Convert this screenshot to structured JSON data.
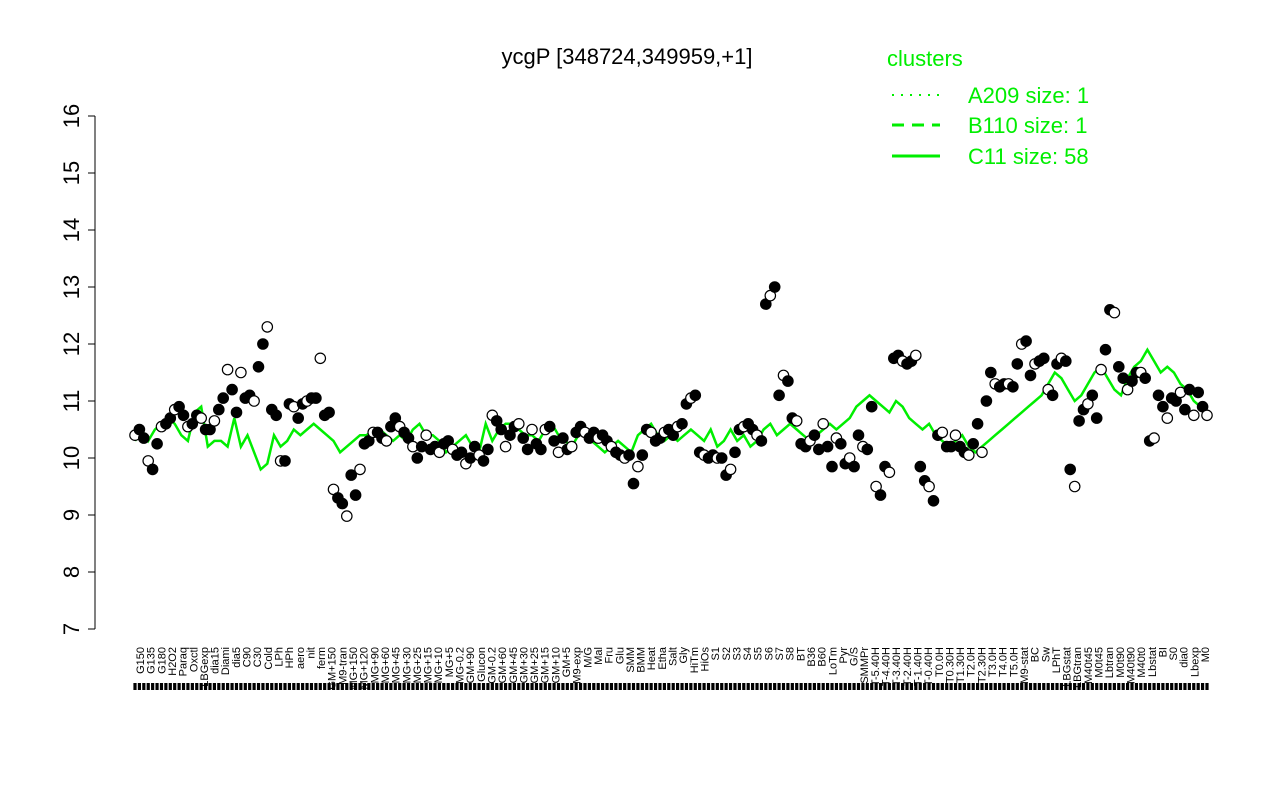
{
  "chart_data": {
    "type": "line",
    "title": "ycgP [348724,349959,+1]",
    "xlabel": "",
    "ylabel": "",
    "ylim": [
      7,
      16
    ],
    "yticks": [
      7,
      8,
      9,
      10,
      11,
      12,
      13,
      14,
      15,
      16
    ],
    "grid": false,
    "legend": {
      "title": "clusters",
      "placement": "top-right",
      "entries": [
        {
          "label": "A209 size: 1",
          "style": "dotted"
        },
        {
          "label": "B110 size: 1",
          "style": "dashed"
        },
        {
          "label": "C11 size: 58",
          "style": "solid"
        }
      ]
    },
    "x_tick_labels": [
      "G150",
      "G135",
      "G180",
      "H2O2",
      "Paraq",
      "Oxctl",
      "LBGexp",
      "dia15",
      "Diami",
      "dia5",
      "C90",
      "C30",
      "Cold",
      "LPh",
      "HPh",
      "aero",
      "nit",
      "ferm",
      "GM+150",
      "M9-tran",
      "MG+150",
      "MG+120",
      "MG+90",
      "MG+60",
      "MG+45",
      "MG+30",
      "MG+25",
      "MG+15",
      "MG+10",
      "MG+5",
      "MG-0.2",
      "GM+90",
      "Glucon",
      "GM-0.2",
      "GM+60",
      "GM+45",
      "GM+30",
      "GM+25",
      "GM+15",
      "GM+10",
      "GM+5",
      "M9-exp",
      "M/G",
      "Mal",
      "Fru",
      "Glu",
      "SMM",
      "BMM",
      "Heat",
      "Etha",
      "Salt",
      "Gly",
      "HiTm",
      "HiOs",
      "S1",
      "S2",
      "S3",
      "S4",
      "S5",
      "S6",
      "S7",
      "S8",
      "BT",
      "B36",
      "B60",
      "LoTm",
      "Pyr",
      "G/S",
      "SMMPr",
      "T-5.40H",
      "T-4.40H",
      "T-3.40H",
      "T-2.40H",
      "T-1.40H",
      "T-0.40H",
      "T0.0H",
      "T0.30H",
      "T1.30H",
      "T2.0H",
      "T2.30H",
      "T3.0H",
      "T4.0H",
      "T5.0H",
      "M9-stat",
      "BC",
      "Sw",
      "LPhT",
      "LBGstat",
      "LBGtran",
      "M40t45",
      "M0t45",
      "Lbtran",
      "M0t90",
      "M40t90",
      "M40t0",
      "Lbstat",
      "BI",
      "S0",
      "dia0",
      "Lbexp",
      "M0"
    ],
    "series": [
      {
        "name": "",
        "color": "#00ee00",
        "style": "solid",
        "values": [
          10.3,
          10.5,
          10.3,
          10.5,
          10.6,
          10.7,
          10.6,
          10.4,
          10.3,
          10.8,
          10.9,
          10.2,
          10.3,
          10.3,
          10.2,
          10.7,
          10.2,
          10.4,
          10.1,
          9.8,
          9.9,
          10.4,
          10.2,
          10.3,
          10.5,
          10.4,
          10.5,
          10.6,
          10.5,
          10.4,
          10.3,
          10.1,
          10.2,
          10.3,
          10.4,
          10.4,
          10.5,
          10.5,
          10.4,
          10.3,
          10.4,
          10.3,
          10.5,
          10.6,
          10.4,
          10.4,
          10.3,
          10.1,
          10.2,
          10.3,
          10.4,
          10.2,
          10.1,
          10.6,
          10.3,
          10.5,
          10.6,
          10.6,
          10.5,
          10.4,
          10.4,
          10.3,
          10.5,
          10.6,
          10.4,
          10.3,
          10.2,
          10.4,
          10.5,
          10.3,
          10.2,
          10.1,
          10.2,
          10.3,
          10.2,
          10.1,
          10.4,
          10.5,
          10.6,
          10.4,
          10.3,
          10.4,
          10.3,
          10.4,
          10.5,
          10.4,
          10.3,
          10.5,
          10.2,
          10.3,
          10.5,
          10.3,
          10.4,
          10.2,
          10.3,
          10.5,
          10.6,
          10.4,
          10.5,
          10.6,
          10.5,
          10.4,
          10.3,
          10.4,
          10.5,
          10.6,
          10.5,
          10.6,
          10.7,
          10.9,
          11.0,
          11.1,
          11.0,
          10.9,
          10.8,
          11.0,
          10.9,
          10.7,
          10.6,
          10.5,
          10.6,
          10.4,
          10.3,
          10.2,
          10.3,
          10.4,
          10.2,
          10.1,
          10.2,
          10.3,
          10.4,
          10.5,
          10.6,
          10.7,
          10.8,
          10.9,
          11.0,
          11.1,
          11.3,
          11.5,
          11.4,
          11.2,
          11.0,
          11.1,
          11.3,
          11.5,
          11.6,
          11.4,
          11.2,
          11.1,
          11.4,
          11.6,
          11.7,
          11.9,
          11.7,
          11.5,
          11.6,
          11.5,
          11.3,
          11.2,
          11.0,
          10.9,
          10.8
        ]
      }
    ],
    "points": [
      10.4,
      10.5,
      10.35,
      9.95,
      9.8,
      10.25,
      10.55,
      10.6,
      10.7,
      10.85,
      10.9,
      10.75,
      10.55,
      10.6,
      10.75,
      10.7,
      10.5,
      10.5,
      10.65,
      10.85,
      11.05,
      11.55,
      11.2,
      10.8,
      11.5,
      11.05,
      11.1,
      11.0,
      11.6,
      12.0,
      12.3,
      10.85,
      10.75,
      9.95,
      9.95,
      10.95,
      10.9,
      10.7,
      10.95,
      11.0,
      11.05,
      11.05,
      11.75,
      10.75,
      10.8,
      9.45,
      9.3,
      9.2,
      8.98,
      9.7,
      9.35,
      9.8,
      10.25,
      10.3,
      10.45,
      10.45,
      10.35,
      10.3,
      10.55,
      10.7,
      10.55,
      10.45,
      10.35,
      10.2,
      10.0,
      10.2,
      10.4,
      10.15,
      10.2,
      10.1,
      10.25,
      10.3,
      10.15,
      10.05,
      10.1,
      9.9,
      10.0,
      10.2,
      10.05,
      9.95,
      10.15,
      10.75,
      10.65,
      10.5,
      10.2,
      10.4,
      10.55,
      10.6,
      10.35,
      10.15,
      10.5,
      10.25,
      10.15,
      10.5,
      10.55,
      10.3,
      10.1,
      10.35,
      10.15,
      10.2,
      10.45,
      10.55,
      10.45,
      10.35,
      10.45,
      10.35,
      10.4,
      10.3,
      10.2,
      10.1,
      10.05,
      10.0,
      10.05,
      9.55,
      9.85,
      10.05,
      10.5,
      10.45,
      10.3,
      10.35,
      10.45,
      10.5,
      10.4,
      10.55,
      10.6,
      10.95,
      11.05,
      11.1,
      10.1,
      10.05,
      10.0,
      10.05,
      10.0,
      10.0,
      9.7,
      9.8,
      10.1,
      10.5,
      10.55,
      10.6,
      10.5,
      10.4,
      10.3,
      12.7,
      12.85,
      13.0,
      11.1,
      11.45,
      11.35,
      10.7,
      10.65,
      10.25,
      10.2,
      10.3,
      10.4,
      10.15,
      10.6,
      10.2,
      9.85,
      10.35,
      10.25,
      9.9,
      10.0,
      9.85,
      10.4,
      10.2,
      10.15,
      10.9,
      9.5,
      9.35,
      9.85,
      9.75,
      11.75,
      11.8,
      11.7,
      11.65,
      11.7,
      11.8,
      9.85,
      9.6,
      9.5,
      9.25,
      10.4,
      10.45,
      10.2,
      10.2,
      10.4,
      10.2,
      10.1,
      10.05,
      10.25,
      10.6,
      10.1,
      11.0,
      11.5,
      11.3,
      11.25,
      11.3,
      11.3,
      11.25,
      11.65,
      12.0,
      12.05,
      11.45,
      11.65,
      11.7,
      11.75,
      11.2,
      11.1,
      11.65,
      11.75,
      11.7,
      9.8,
      9.5,
      10.65,
      10.85,
      10.95,
      11.1,
      10.7,
      11.55,
      11.9,
      12.6,
      12.55,
      11.6,
      11.4,
      11.2,
      11.35,
      11.5,
      11.5,
      11.4,
      10.3,
      10.35,
      11.1,
      10.9,
      10.7,
      11.05,
      11.0,
      11.15,
      10.85,
      11.2,
      10.75,
      11.15,
      10.9,
      10.75
    ]
  }
}
